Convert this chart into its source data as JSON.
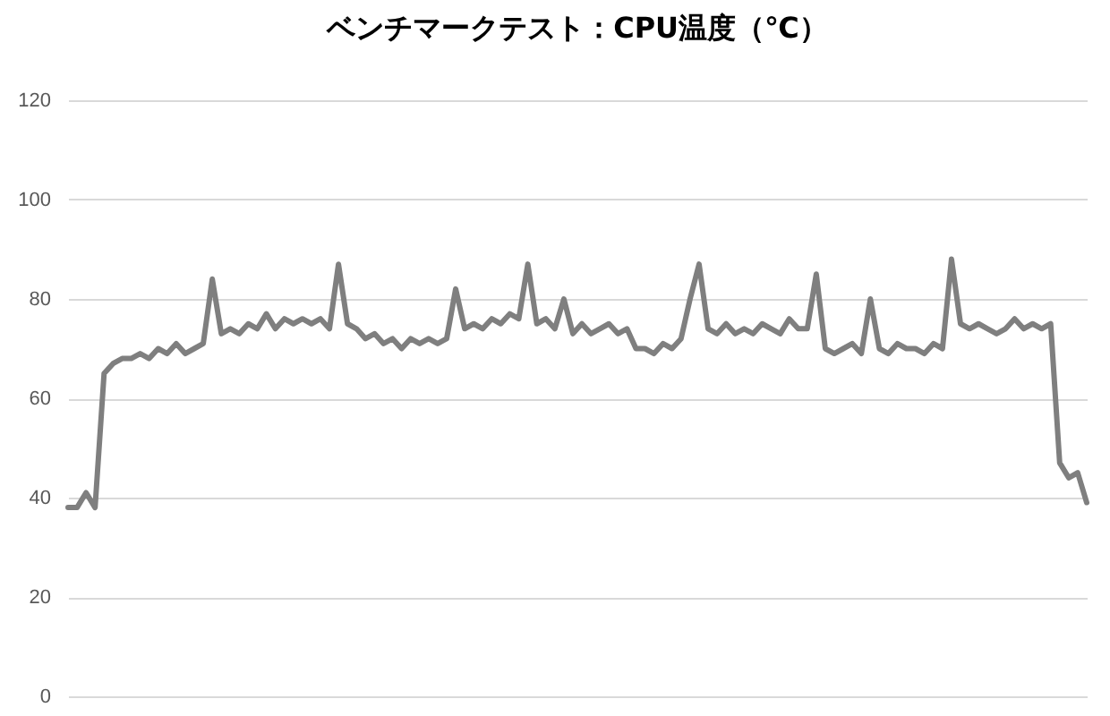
{
  "chart_data": {
    "type": "line",
    "title": "ベンチマークテスト：CPU温度（℃）",
    "categories": [
      null,
      null,
      null,
      null,
      null,
      null,
      null,
      null,
      null,
      null,
      null,
      null,
      null,
      null,
      null,
      null,
      null,
      null,
      null,
      null,
      null,
      null,
      null,
      null,
      null,
      null,
      null,
      null,
      null,
      null,
      null,
      null,
      null,
      null,
      null,
      null,
      null,
      null,
      null,
      null,
      null,
      null,
      null,
      null,
      null,
      null,
      null,
      null,
      null,
      null,
      null,
      null,
      null,
      null,
      null,
      null,
      null,
      null,
      null,
      null,
      null,
      null,
      null,
      null,
      null,
      null,
      null,
      null,
      null,
      null,
      null,
      null,
      null,
      null,
      null,
      null,
      null,
      null,
      null,
      null,
      null,
      null,
      null,
      null,
      null,
      null,
      null,
      null,
      null,
      null,
      null,
      null,
      null,
      null,
      null,
      null,
      null,
      null,
      null,
      null,
      null,
      null,
      null,
      null,
      null,
      null,
      null,
      null,
      null,
      null,
      null,
      null,
      null,
      null
    ],
    "series": [
      {
        "color": "#7f7f7f",
        "values": [
          38,
          38,
          41,
          38,
          65,
          67,
          68,
          68,
          69,
          68,
          70,
          69,
          71,
          69,
          70,
          71,
          84,
          73,
          74,
          73,
          75,
          74,
          77,
          74,
          76,
          75,
          76,
          75,
          76,
          74,
          87,
          75,
          74,
          72,
          73,
          71,
          72,
          70,
          72,
          71,
          72,
          71,
          72,
          82,
          74,
          75,
          74,
          76,
          75,
          77,
          76,
          87,
          75,
          76,
          74,
          80,
          73,
          75,
          73,
          74,
          75,
          73,
          74,
          70,
          70,
          69,
          71,
          70,
          72,
          80,
          87,
          74,
          73,
          75,
          73,
          74,
          73,
          75,
          74,
          73,
          76,
          74,
          74,
          85,
          70,
          69,
          70,
          71,
          69,
          80,
          70,
          69,
          71,
          70,
          70,
          69,
          71,
          70,
          88,
          75,
          74,
          75,
          74,
          73,
          74,
          76,
          74,
          75,
          74,
          75,
          47,
          44,
          45,
          39
        ]
      }
    ],
    "ylim": [
      0,
      120
    ],
    "yticks": [
      0,
      20,
      40,
      60,
      80,
      100,
      120
    ],
    "grid": "y",
    "line_style": "solid"
  }
}
